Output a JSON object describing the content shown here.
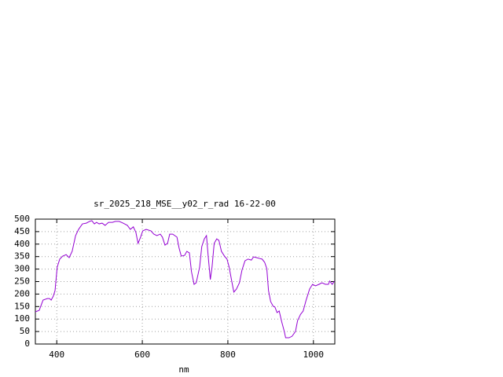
{
  "chart_data": {
    "type": "line",
    "title": "sr_2025_218_MSE__y02_r_rad 16-22-00",
    "x_label": "nm",
    "x": [
      350,
      359,
      368,
      378,
      383,
      387,
      392,
      396,
      401,
      407,
      414,
      422,
      429,
      436,
      444,
      451,
      460,
      469,
      477,
      482,
      488,
      493,
      499,
      506,
      513,
      521,
      530,
      537,
      546,
      555,
      565,
      572,
      579,
      585,
      590,
      596,
      601,
      609,
      620,
      627,
      634,
      642,
      647,
      653,
      659,
      664,
      671,
      681,
      686,
      691,
      699,
      704,
      710,
      715,
      721,
      726,
      734,
      739,
      745,
      750,
      754,
      759,
      763,
      768,
      774,
      779,
      785,
      792,
      798,
      803,
      809,
      814,
      820,
      827,
      833,
      840,
      847,
      855,
      860,
      867,
      873,
      880,
      886,
      891,
      895,
      900,
      906,
      910,
      915,
      920,
      926,
      932,
      935,
      943,
      950,
      958,
      963,
      970,
      976,
      983,
      991,
      998,
      1005,
      1013,
      1020,
      1028,
      1035,
      1038,
      1044,
      1049
    ],
    "values": [
      129,
      135,
      176,
      182,
      182,
      176,
      192,
      214,
      308,
      340,
      352,
      358,
      346,
      371,
      434,
      459,
      481,
      484,
      491,
      494,
      481,
      487,
      481,
      484,
      475,
      487,
      487,
      491,
      491,
      484,
      475,
      459,
      469,
      447,
      403,
      428,
      453,
      459,
      453,
      440,
      434,
      440,
      428,
      396,
      403,
      440,
      440,
      428,
      384,
      352,
      355,
      371,
      365,
      289,
      239,
      245,
      308,
      390,
      421,
      434,
      352,
      258,
      308,
      403,
      421,
      415,
      371,
      352,
      340,
      308,
      252,
      208,
      220,
      245,
      296,
      333,
      340,
      336,
      349,
      346,
      343,
      340,
      327,
      302,
      214,
      170,
      151,
      148,
      126,
      132,
      88,
      50,
      25,
      25,
      31,
      50,
      94,
      119,
      132,
      176,
      220,
      239,
      233,
      239,
      245,
      239,
      239,
      252,
      239,
      252
    ],
    "color": "#9400d3",
    "xlim": [
      350,
      1050
    ],
    "xticks": [
      400,
      600,
      800,
      1000
    ],
    "ylim": [
      0,
      500
    ],
    "yticks": [
      0,
      50,
      100,
      150,
      200,
      250,
      300,
      350,
      400,
      450,
      500
    ],
    "grid": true
  }
}
